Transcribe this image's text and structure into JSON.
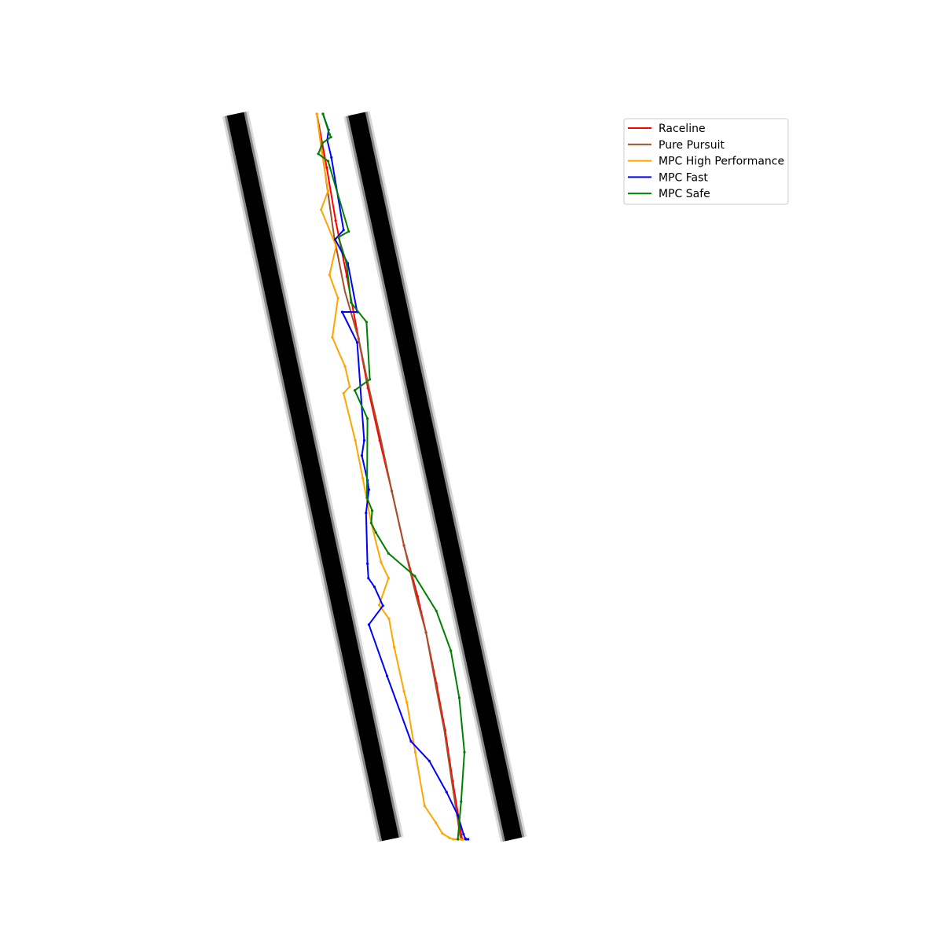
{
  "chart_data": {
    "type": "line",
    "title": "",
    "xlabel": "",
    "ylabel": "",
    "axes_visible": false,
    "grid": false,
    "legend_position": "top-right",
    "xlim": [
      0,
      100
    ],
    "ylim": [
      0,
      100
    ],
    "track_walls": {
      "color": "#000000",
      "left_wall": {
        "x": [
          1.6,
          34.7
        ],
        "y": [
          100,
          0
        ]
      },
      "right_wall": {
        "x": [
          27.5,
          61.0
        ],
        "y": [
          100,
          0
        ]
      }
    },
    "series": [
      {
        "name": "Raceline",
        "color": "#ff0000",
        "markers": true,
        "x": [
          19.0,
          21.1,
          23.0,
          25.4,
          27.9,
          29.9,
          32.4,
          35.0,
          37.6,
          40.5,
          42.3,
          44.5,
          46.4,
          48.0,
          50.0
        ],
        "y": [
          100,
          92.6,
          85.3,
          77.6,
          69.0,
          62.2,
          55.0,
          48.0,
          40.5,
          33.5,
          28.5,
          21.5,
          15.0,
          8.0,
          0
        ]
      },
      {
        "name": "Pure Pursuit",
        "color": "#a0522d",
        "markers": false,
        "x": [
          19.0,
          20.6,
          22.7,
          25.0,
          27.9,
          30.2,
          32.7,
          35.0,
          37.6,
          40.2,
          42.3,
          44.3,
          46.2,
          47.8,
          49.7
        ],
        "y": [
          100,
          92.6,
          83.0,
          75.5,
          69.0,
          62.0,
          55.0,
          48.0,
          40.5,
          33.5,
          28.5,
          21.5,
          15.0,
          8.0,
          0
        ]
      },
      {
        "name": "MPC High Performance",
        "color": "#ffa500",
        "markers": true,
        "x": [
          19.0,
          20.0,
          21.4,
          19.9,
          23.1,
          21.7,
          23.5,
          22.3,
          25.0,
          26.0,
          24.7,
          27.2,
          28.8,
          30.6,
          32.7,
          34.3,
          32.3,
          34.4,
          35.5,
          37.6,
          38.2,
          40.0,
          42.0,
          44.4,
          45.8,
          47.3,
          48.1,
          49.7,
          50.4
        ],
        "y": [
          100,
          94.9,
          89.4,
          86.8,
          81.8,
          77.8,
          74.6,
          69.2,
          65.2,
          62.4,
          61.5,
          55.0,
          49.8,
          43.6,
          38.2,
          36.0,
          32.3,
          30.4,
          26.5,
          20.4,
          18.9,
          12.0,
          4.6,
          2.3,
          0.8,
          0.2,
          0.0,
          0.0,
          0.0
        ]
      },
      {
        "name": "MPC Fast",
        "color": "#0000ff",
        "markers": true,
        "x": [
          20.3,
          21.5,
          21.2,
          22.1,
          24.7,
          22.9,
          25.6,
          27.6,
          24.4,
          27.6,
          29.1,
          28.6,
          29.8,
          30.1,
          29.5,
          29.8,
          30.0,
          31.3,
          33.1,
          30.1,
          34.0,
          39.1,
          43.0,
          46.7,
          49.1,
          50.3,
          50.7,
          50.8,
          51.3
        ],
        "y": [
          100,
          97.8,
          96.4,
          94.0,
          84.0,
          82.7,
          79.4,
          72.7,
          72.7,
          68.5,
          55.0,
          52.9,
          49.5,
          48.2,
          45.0,
          38.0,
          36.0,
          34.8,
          32.2,
          29.6,
          22.5,
          13.5,
          10.8,
          6.5,
          3.3,
          0.7,
          0.1,
          0.0,
          0.0
        ]
      },
      {
        "name": "MPC Safe",
        "color": "#008000",
        "markers": true,
        "x": [
          20.3,
          21.7,
          22.0,
          20.2,
          19.3,
          21.4,
          25.8,
          23.6,
          25.3,
          26.3,
          29.6,
          30.3,
          27.1,
          29.8,
          29.7,
          30.8,
          30.6,
          31.6,
          34.3,
          39.9,
          44.5,
          47.6,
          49.4,
          50.5,
          49.8,
          49.1
        ],
        "y": [
          100,
          97.2,
          96.8,
          96.0,
          94.5,
          93.5,
          83.8,
          83.0,
          79.5,
          74.0,
          71.3,
          63.4,
          61.9,
          58.0,
          47.1,
          45.3,
          43.6,
          42.3,
          39.4,
          36.3,
          31.5,
          26.0,
          19.5,
          12.0,
          5.2,
          0.0
        ]
      }
    ]
  }
}
